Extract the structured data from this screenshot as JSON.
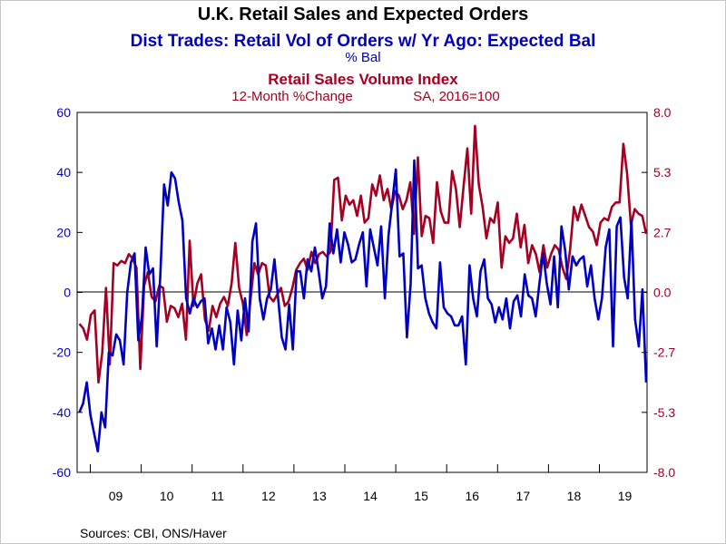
{
  "colors": {
    "series1": "#0000c0",
    "series2": "#a50021",
    "frame": "#000000"
  },
  "chart_data": {
    "type": "line",
    "title": "U.K. Retail Sales and Expected Orders",
    "series": [
      {
        "name": "Dist Trades: Retail Vol of Orders w/ Yr Ago: Expected Bal",
        "unit": "% Bal",
        "axis": "left",
        "color": "#0000c0",
        "values": [
          -40,
          -37,
          -30,
          -41,
          -47,
          -53,
          -40,
          -45,
          -20,
          -21,
          -14,
          -16,
          -24,
          0,
          10,
          13,
          -16,
          -8,
          15,
          6,
          8,
          -18,
          6,
          36,
          29,
          40,
          38,
          30,
          24,
          -2,
          -7,
          -2,
          -5,
          -3,
          -2,
          -17,
          -12,
          -19,
          -11,
          -19,
          -5,
          -10,
          -24,
          -6,
          -16,
          -2,
          -13,
          17,
          23,
          -2,
          -9,
          -2,
          1,
          11,
          -2,
          -15,
          -19,
          -4,
          -19,
          7,
          7,
          -2,
          11,
          7,
          15,
          7,
          -2,
          2,
          23,
          13,
          21,
          10,
          20,
          16,
          10,
          11,
          16,
          20,
          2,
          21,
          15,
          9,
          22,
          -2,
          19,
          30,
          41,
          12,
          13,
          -15,
          3,
          44,
          8,
          9,
          -2,
          -7,
          -10,
          -12,
          10,
          -5,
          -7,
          -8,
          -11,
          -11,
          -8,
          -24,
          9,
          -2,
          -8,
          7,
          11,
          -2,
          -4,
          -10,
          -5,
          -9,
          -2,
          -12,
          -3,
          -1,
          -8,
          6,
          -1,
          -2,
          -8,
          3,
          13,
          3,
          -4,
          12,
          -5,
          22,
          14,
          1,
          12,
          9,
          11,
          12,
          2,
          9,
          -2,
          -9,
          -2,
          15,
          21,
          -18,
          22,
          25,
          5,
          -2,
          24,
          -9,
          -18,
          1,
          -30
        ]
      },
      {
        "name": "Retail Sales Volume Index",
        "unit": "12-Month %Change    SA, 2016=100",
        "axis": "right",
        "color": "#a50021",
        "values": [
          -1.4,
          -1.6,
          -2.1,
          -1,
          -0.8,
          -4,
          -2.7,
          0.2,
          -3.2,
          1.3,
          1.2,
          1.4,
          1.3,
          1.7,
          1.5,
          1.1,
          -3.4,
          0.3,
          0.9,
          -0.2,
          -0.4,
          0.3,
          0.2,
          -1.3,
          -0.6,
          -0.7,
          -1.1,
          -0.5,
          -2.1,
          2.3,
          -0.6,
          0.4,
          0.8,
          -1.2,
          -1.7,
          -0.6,
          -1.1,
          -0.5,
          -0.2,
          -0.6,
          0.4,
          2.2,
          0.2,
          -0.5,
          -1.9,
          -0.3,
          1.3,
          0.8,
          1.3,
          1.2,
          -0.2,
          -0.4,
          -0.1,
          0.2,
          -0.6,
          -0.4,
          0.2,
          1,
          1.3,
          1.5,
          1,
          1.8,
          1.3,
          1.7,
          1.8,
          1.6,
          1.8,
          5,
          5.1,
          3.2,
          4.3,
          3.9,
          4.1,
          3.4,
          4.3,
          3.1,
          3.3,
          4.8,
          4.3,
          5.2,
          4.1,
          4.6,
          3.7,
          4.5,
          4.3,
          3.7,
          4.1,
          4.9,
          2.6,
          6,
          2.5,
          3.4,
          3.3,
          2.2,
          4.9,
          3.6,
          3.1,
          3.1,
          5.4,
          4.6,
          2.9,
          4.7,
          6.4,
          3.5,
          7.4,
          4.8,
          3.8,
          2.4,
          3.3,
          3.1,
          4,
          1.1,
          2.5,
          2.2,
          2.4,
          3.5,
          2,
          3,
          1.3,
          2.1,
          1.7,
          0.9,
          2.1,
          1.1,
          1.7,
          2.1,
          1.9,
          1.1,
          0.6,
          1.9,
          3.8,
          3.2,
          3.9,
          3.4,
          2.9,
          2.7,
          2.1,
          3.1,
          3.3,
          3.2,
          3.8,
          4,
          4,
          6.6,
          5.3,
          3,
          3.7,
          3.5,
          3.4,
          2.6
        ]
      }
    ],
    "x_labels": [
      "09",
      "10",
      "11",
      "12",
      "13",
      "14",
      "15",
      "16",
      "17",
      "18",
      "19"
    ],
    "left_axis": {
      "range": [
        -60,
        60
      ],
      "ticks": [
        "60",
        "40",
        "20",
        "0",
        "-20",
        "-40",
        "-60"
      ]
    },
    "right_axis": {
      "range": [
        -8,
        8
      ],
      "ticks": [
        "8.0",
        "5.3",
        "2.7",
        "0.0",
        "-2.7",
        "-5.3",
        "-8.0"
      ]
    },
    "zero_line": true,
    "grid": false,
    "legend": "top-center"
  },
  "titles": {
    "main": "U.K. Retail Sales and Expected Orders",
    "series1": "Dist Trades: Retail Vol of Orders w/ Yr Ago: Expected Bal",
    "series1_unit": "% Bal",
    "series2": "Retail Sales Volume Index",
    "series2_unit_left": "12-Month %Change",
    "series2_unit_right": "SA, 2016=100"
  },
  "source": "Sources:  CBI, ONS/Haver"
}
